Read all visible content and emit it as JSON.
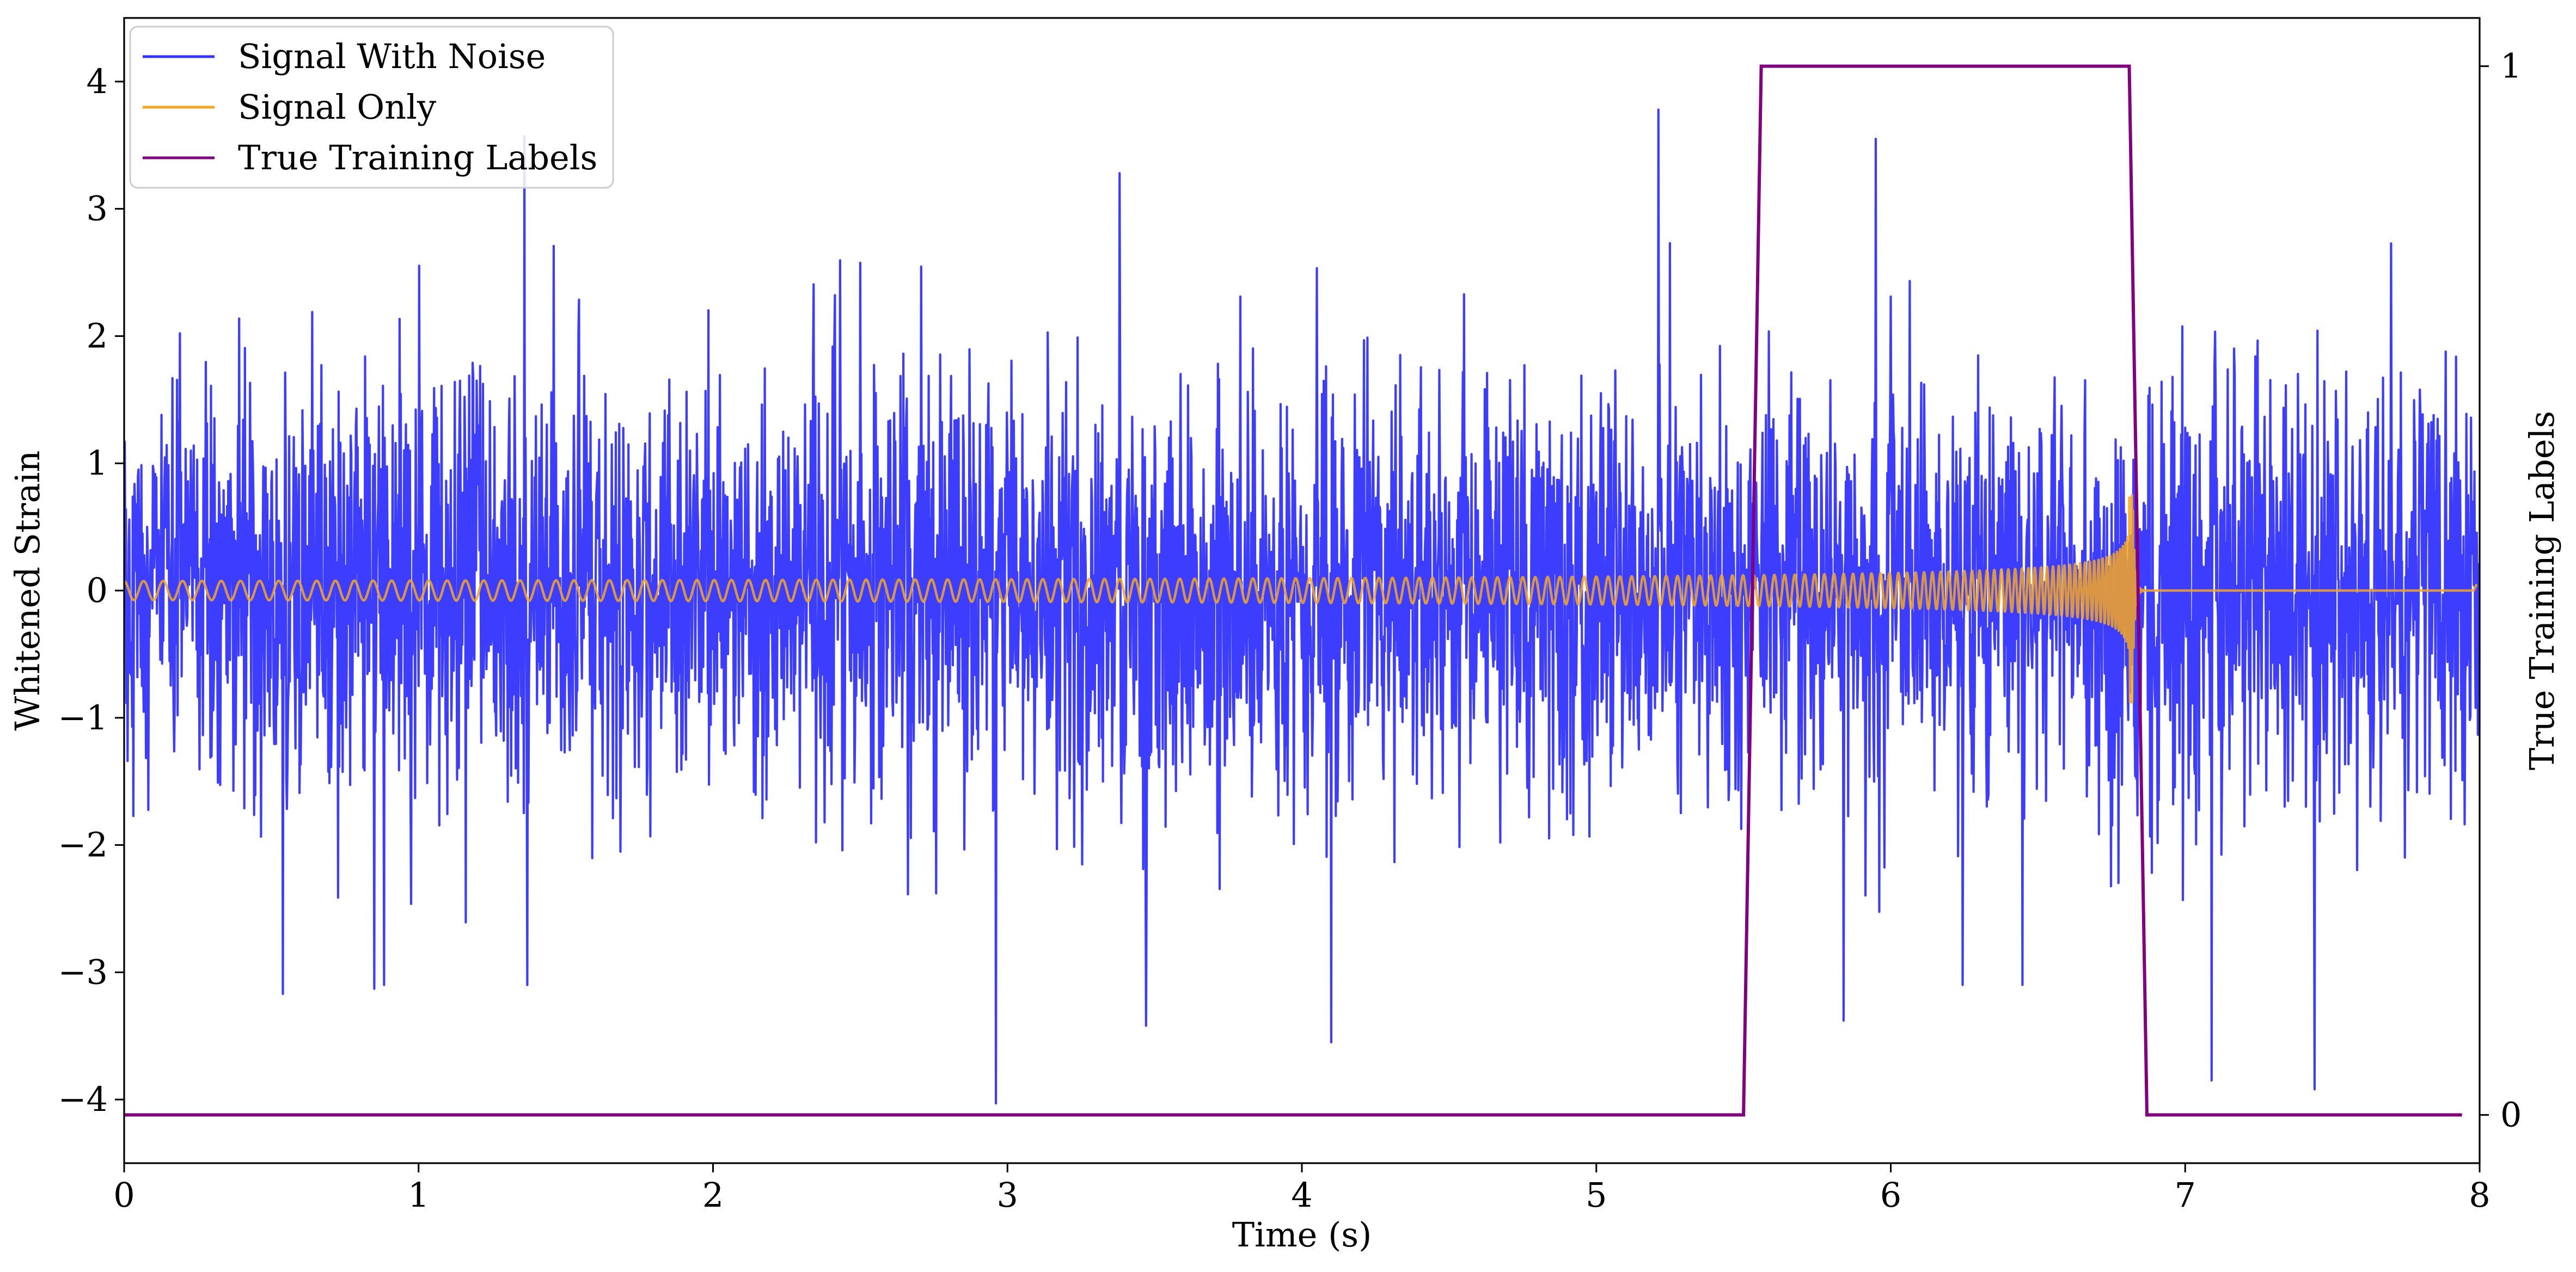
{
  "chart_data": {
    "type": "line",
    "title": "",
    "xlabel": "Time (s)",
    "ylabel": "Whitened Strain",
    "y2label": "True Training Labels",
    "xlim": [
      0,
      8
    ],
    "ylim": [
      -4.5,
      4.5
    ],
    "y2lim": [
      -0.046,
      1.046
    ],
    "xticks": [
      0,
      1,
      2,
      3,
      4,
      5,
      6,
      7,
      8
    ],
    "yticks": [
      -4,
      -3,
      -2,
      -1,
      0,
      1,
      2,
      3,
      4
    ],
    "y2ticks": [
      0,
      1
    ],
    "legend_position": "upper-left",
    "grid": false,
    "series": [
      {
        "name": "Signal With Noise",
        "color": "#3333ff",
        "axis": "left",
        "kind": "noise",
        "sample_rate_hz": 512,
        "noise_std": 0.82,
        "spikes": [
          {
            "x": 0.54,
            "y": -3.17
          },
          {
            "x": 0.85,
            "y": -3.13
          },
          {
            "x": 1.36,
            "y": 3.57
          },
          {
            "x": 1.37,
            "y": -3.1
          },
          {
            "x": 2.96,
            "y": -4.03
          },
          {
            "x": 3.47,
            "y": -3.42
          },
          {
            "x": 3.38,
            "y": 3.28
          },
          {
            "x": 5.21,
            "y": 3.78
          },
          {
            "x": 4.1,
            "y": -3.55
          },
          {
            "x": 5.84,
            "y": -3.38
          },
          {
            "x": 5.95,
            "y": 3.55
          },
          {
            "x": 7.09,
            "y": -3.85
          },
          {
            "x": 7.44,
            "y": -3.92
          }
        ]
      },
      {
        "name": "Signal Only",
        "color": "#f5a623",
        "axis": "left",
        "kind": "chirp",
        "t_start": 0.0,
        "t_merger": 6.82,
        "t_end": 7.99,
        "amp_start": 0.075,
        "amp_peak": 0.75,
        "amp_min_trough": -0.88
      },
      {
        "name": "True Training Labels",
        "color": "#800080",
        "axis": "right",
        "x": [
          0.0,
          5.5,
          5.56,
          6.81,
          6.87,
          7.94
        ],
        "y": [
          0,
          0,
          1,
          1,
          0,
          0
        ]
      }
    ]
  }
}
